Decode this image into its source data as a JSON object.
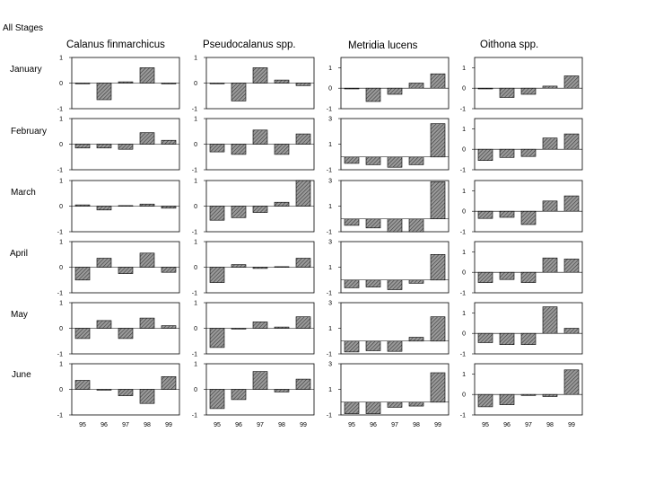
{
  "title": "All Stages",
  "species": [
    "Calanus finmarchicus",
    "Pseudocalanus spp.",
    "Metridia lucens",
    "Oithona spp."
  ],
  "months": [
    "January",
    "February",
    "March",
    "April",
    "May",
    "June"
  ],
  "chart_data": {
    "type": "bar",
    "layout": "small-multiples",
    "categories": [
      "95",
      "96",
      "97",
      "98",
      "99"
    ],
    "columns": [
      {
        "name": "Calanus finmarchicus",
        "ylim": [
          -1,
          1
        ],
        "yticks": [
          -1,
          0,
          1
        ]
      },
      {
        "name": "Pseudocalanus spp.",
        "ylim": [
          -1,
          1
        ],
        "yticks": [
          -1,
          0,
          1
        ]
      },
      {
        "name": "Metridia lucens",
        "ylim": [
          -1,
          3
        ],
        "yticks": [
          -1,
          1,
          3
        ],
        "ylim_first_row": [
          -1,
          1.5
        ],
        "yticks_first_row": [
          -1,
          0,
          1
        ]
      },
      {
        "name": "Oithona spp.",
        "ylim": [
          -1,
          1.5
        ],
        "yticks": [
          -1,
          0,
          1
        ]
      }
    ],
    "values": {
      "January": [
        [
          0,
          -0.65,
          0.05,
          0.6,
          -0.03
        ],
        [
          0,
          -0.7,
          0.6,
          0.12,
          -0.1
        ],
        [
          0,
          -0.65,
          -0.3,
          0.25,
          0.7
        ],
        [
          0,
          -0.45,
          -0.3,
          0.1,
          0.6
        ]
      ],
      "February": [
        [
          -0.15,
          -0.15,
          -0.2,
          0.45,
          0.15
        ],
        [
          -0.3,
          -0.4,
          0.55,
          -0.4,
          0.4
        ],
        [
          -0.5,
          -0.6,
          -0.8,
          -0.6,
          2.6
        ],
        [
          -0.55,
          -0.4,
          -0.35,
          0.55,
          0.75
        ]
      ],
      "March": [
        [
          0.05,
          -0.15,
          0.02,
          0.08,
          -0.08
        ],
        [
          -0.55,
          -0.45,
          -0.25,
          0.15,
          1.0
        ],
        [
          -0.5,
          -0.7,
          -1.0,
          -1.0,
          2.9
        ],
        [
          -0.35,
          -0.3,
          -0.65,
          0.5,
          0.75
        ]
      ],
      "April": [
        [
          -0.5,
          0.35,
          -0.25,
          0.55,
          -0.2
        ],
        [
          -0.6,
          0.1,
          -0.05,
          0.02,
          0.35
        ],
        [
          -0.6,
          -0.55,
          -0.75,
          -0.25,
          2.0
        ],
        [
          -0.5,
          -0.35,
          -0.5,
          0.7,
          0.65
        ]
      ],
      "May": [
        [
          -0.4,
          0.3,
          -0.4,
          0.4,
          0.1
        ],
        [
          -0.75,
          -0.03,
          0.25,
          0.05,
          0.45
        ],
        [
          -0.85,
          -0.75,
          -0.8,
          0.3,
          1.9
        ],
        [
          -0.45,
          -0.55,
          -0.55,
          1.3,
          0.25
        ]
      ],
      "June": [
        [
          0.35,
          -0.03,
          -0.25,
          -0.55,
          0.5
        ],
        [
          -0.75,
          -0.4,
          0.7,
          -0.1,
          0.4
        ],
        [
          -0.9,
          -0.9,
          -0.4,
          -0.3,
          2.3
        ],
        [
          -0.6,
          -0.5,
          -0.05,
          -0.1,
          1.2
        ]
      ]
    }
  }
}
